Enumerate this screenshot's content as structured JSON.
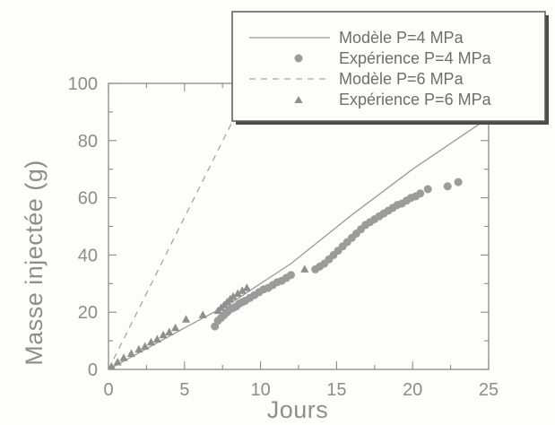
{
  "chart_data": {
    "type": "line",
    "xlabel": "Jours",
    "ylabel": "Masse injectée (g)",
    "xlim": [
      0,
      25
    ],
    "ylim": [
      0,
      100
    ],
    "xticks": [
      0,
      5,
      10,
      15,
      20,
      25
    ],
    "yticks": [
      0,
      20,
      40,
      60,
      80,
      100
    ],
    "grid": false,
    "legend_position": "top-right",
    "series": [
      {
        "name": "Modèle P=4 MPa",
        "type": "line",
        "line_style": "solid",
        "color": "#9a9a9a",
        "x": [
          0,
          5,
          8,
          12,
          16,
          20,
          25
        ],
        "y": [
          0,
          14.5,
          23,
          37,
          54,
          70,
          88
        ]
      },
      {
        "name": "Expérience P=4 MPa",
        "type": "scatter",
        "marker": "circle",
        "color": "#9b9b9b",
        "x": [
          7.0,
          7.2,
          7.4,
          7.6,
          7.8,
          8.0,
          8.2,
          8.4,
          8.6,
          8.8,
          9.0,
          9.3,
          9.6,
          9.9,
          10.2,
          10.5,
          10.8,
          11.1,
          11.4,
          11.7,
          12.0,
          13.6,
          13.9,
          14.2,
          14.5,
          14.8,
          15.1,
          15.4,
          15.7,
          16.0,
          16.3,
          16.6,
          16.9,
          17.2,
          17.5,
          17.8,
          18.1,
          18.4,
          18.7,
          19.0,
          19.3,
          19.6,
          19.9,
          20.2,
          20.5,
          21.0,
          22.3,
          23.0
        ],
        "y": [
          15,
          17,
          18,
          19,
          20,
          21,
          21.5,
          22,
          23,
          23.5,
          24,
          25,
          26,
          27,
          28,
          28.5,
          29.5,
          30.5,
          31,
          32,
          33,
          35,
          36,
          37,
          38.5,
          40,
          41.5,
          43,
          44.5,
          46,
          47.5,
          49,
          50.5,
          51.5,
          52.5,
          53.5,
          54.5,
          55.5,
          56.5,
          57.5,
          58,
          59,
          60,
          60.5,
          61.5,
          63,
          64,
          65.5
        ]
      },
      {
        "name": "Modèle P=6 MPa",
        "type": "line",
        "line_style": "dashed",
        "color": "#a6a6a6",
        "x": [
          0,
          9.4
        ],
        "y": [
          0,
          100
        ]
      },
      {
        "name": "Expérience P=6 MPa",
        "type": "scatter",
        "marker": "triangle",
        "color": "#8f8f8f",
        "x": [
          0.2,
          0.6,
          1.0,
          1.5,
          2.0,
          2.4,
          2.8,
          3.2,
          3.6,
          4.0,
          4.4,
          5.1,
          6.2,
          7.2,
          7.4,
          7.6,
          7.8,
          8.0,
          8.2,
          8.5,
          8.8,
          9.1,
          12.9
        ],
        "y": [
          1,
          2.5,
          4,
          5.5,
          7,
          8,
          9.5,
          10.5,
          12,
          13,
          14.5,
          17.5,
          19,
          20.5,
          21.5,
          22.5,
          23.5,
          24.5,
          25.5,
          26.5,
          27.5,
          28.5,
          35
        ]
      }
    ]
  }
}
